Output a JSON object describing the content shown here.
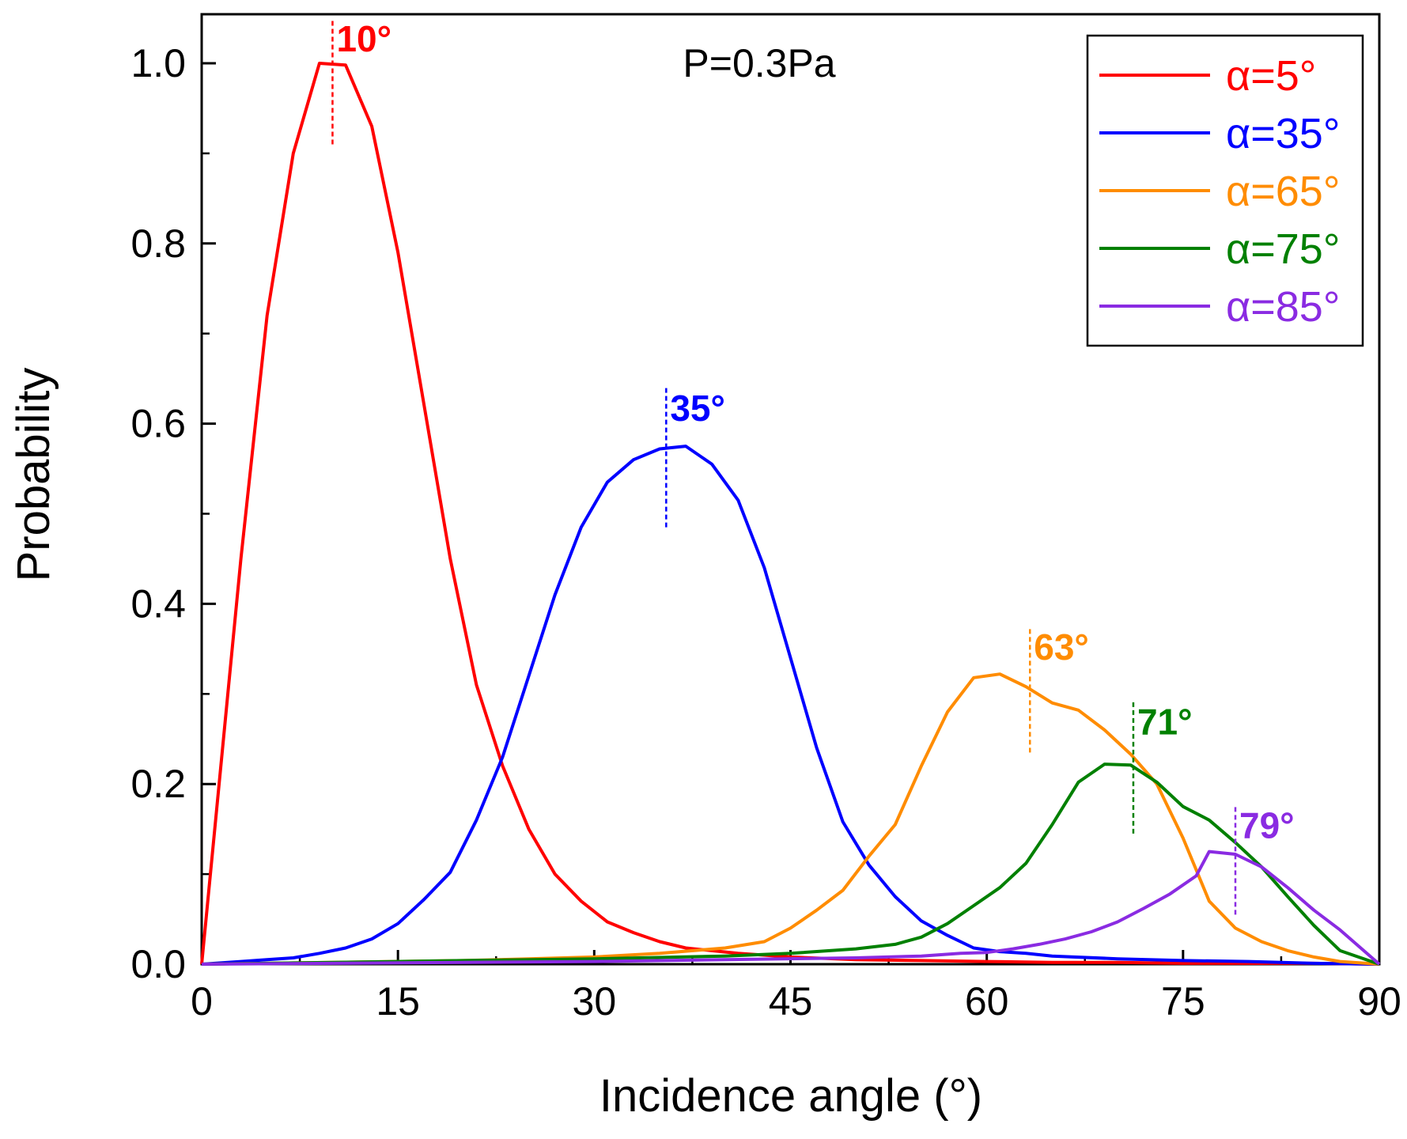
{
  "chart_data": {
    "type": "line",
    "title": "P=0.3Pa",
    "xlabel": "Incidence angle (°)",
    "ylabel": "Probability",
    "xlim": [
      0,
      90
    ],
    "ylim": [
      0,
      1.05
    ],
    "xticks": [
      0,
      15,
      30,
      45,
      60,
      75,
      90
    ],
    "xtick_labels": [
      "0",
      "15",
      "30",
      "45",
      "60",
      "75",
      "90"
    ],
    "yticks": [
      0.0,
      0.2,
      0.4,
      0.6,
      0.8,
      1.0
    ],
    "ytick_labels": [
      "0.0",
      "0.2",
      "0.4",
      "0.6",
      "0.8",
      "1.0"
    ],
    "legend_position": "top-right",
    "grid": false,
    "series": [
      {
        "name": "α=5°",
        "color": "#ff0000",
        "x": [
          0,
          3,
          5,
          7,
          9,
          11,
          13,
          15,
          17,
          19,
          21,
          23,
          25,
          27,
          29,
          31,
          33,
          35,
          37,
          39,
          41,
          45,
          50,
          55,
          60,
          65,
          70,
          75,
          80,
          85,
          90
        ],
        "y": [
          0.0,
          0.45,
          0.72,
          0.9,
          1.0,
          0.998,
          0.93,
          0.79,
          0.62,
          0.45,
          0.31,
          0.22,
          0.15,
          0.1,
          0.07,
          0.047,
          0.035,
          0.025,
          0.018,
          0.015,
          0.012,
          0.008,
          0.005,
          0.004,
          0.003,
          0.002,
          0.002,
          0.001,
          0.001,
          0.001,
          0.0
        ]
      },
      {
        "name": "α=35°",
        "color": "#0000ff",
        "x": [
          0,
          3,
          5,
          7,
          9,
          11,
          13,
          15,
          17,
          19,
          21,
          23,
          25,
          27,
          29,
          31,
          33,
          35,
          37,
          39,
          41,
          43,
          45,
          47,
          49,
          51,
          53,
          55,
          57,
          59,
          61,
          63,
          65,
          70,
          75,
          80,
          85,
          90
        ],
        "y": [
          0.0,
          0.003,
          0.005,
          0.007,
          0.012,
          0.018,
          0.028,
          0.045,
          0.072,
          0.102,
          0.16,
          0.23,
          0.32,
          0.41,
          0.485,
          0.535,
          0.56,
          0.572,
          0.575,
          0.555,
          0.515,
          0.44,
          0.34,
          0.24,
          0.158,
          0.11,
          0.075,
          0.048,
          0.032,
          0.018,
          0.014,
          0.012,
          0.009,
          0.006,
          0.004,
          0.003,
          0.001,
          0.0
        ]
      },
      {
        "name": "α=65°",
        "color": "#ff8c00",
        "x": [
          0,
          10,
          20,
          25,
          30,
          35,
          40,
          43,
          45,
          47,
          49,
          51,
          53,
          55,
          57,
          59,
          61,
          63,
          65,
          67,
          69,
          71,
          73,
          75,
          77,
          79,
          81,
          83,
          85,
          87,
          90
        ],
        "y": [
          0.0,
          0.002,
          0.004,
          0.006,
          0.008,
          0.012,
          0.018,
          0.025,
          0.04,
          0.06,
          0.082,
          0.12,
          0.155,
          0.22,
          0.28,
          0.318,
          0.322,
          0.308,
          0.29,
          0.282,
          0.26,
          0.233,
          0.2,
          0.14,
          0.07,
          0.04,
          0.025,
          0.015,
          0.008,
          0.003,
          0.0
        ]
      },
      {
        "name": "α=75°",
        "color": "#008000",
        "x": [
          0,
          10,
          20,
          30,
          40,
          45,
          50,
          53,
          55,
          57,
          59,
          61,
          63,
          65,
          67,
          69,
          71,
          73,
          75,
          77,
          79,
          81,
          83,
          85,
          87,
          90
        ],
        "y": [
          0.0,
          0.002,
          0.004,
          0.006,
          0.009,
          0.012,
          0.017,
          0.022,
          0.03,
          0.045,
          0.065,
          0.085,
          0.112,
          0.155,
          0.202,
          0.222,
          0.221,
          0.202,
          0.175,
          0.16,
          0.135,
          0.108,
          0.075,
          0.043,
          0.015,
          0.0
        ]
      },
      {
        "name": "α=85°",
        "color": "#8a2be2",
        "x": [
          0,
          10,
          20,
          30,
          40,
          50,
          55,
          58,
          60,
          62,
          64,
          66,
          68,
          70,
          72,
          74,
          76,
          77,
          79,
          81,
          83,
          85,
          87,
          90
        ],
        "y": [
          0.0,
          0.001,
          0.002,
          0.003,
          0.005,
          0.007,
          0.009,
          0.012,
          0.013,
          0.017,
          0.022,
          0.028,
          0.036,
          0.047,
          0.062,
          0.078,
          0.098,
          0.125,
          0.122,
          0.108,
          0.085,
          0.06,
          0.038,
          0.0
        ]
      }
    ],
    "peak_markers": [
      {
        "label": "10°",
        "x": 10,
        "y_from": 0.91,
        "y_to": 1.05,
        "color": "#ff0000"
      },
      {
        "label": "35°",
        "x": 35.5,
        "y_from": 0.485,
        "y_to": 0.64,
        "color": "#0000ff"
      },
      {
        "label": "63°",
        "x": 63.3,
        "y_from": 0.235,
        "y_to": 0.375,
        "color": "#ff8c00"
      },
      {
        "label": "71°",
        "x": 71.2,
        "y_from": 0.145,
        "y_to": 0.292,
        "color": "#008000"
      },
      {
        "label": "79°",
        "x": 79,
        "y_from": 0.055,
        "y_to": 0.177,
        "color": "#8a2be2"
      }
    ]
  }
}
